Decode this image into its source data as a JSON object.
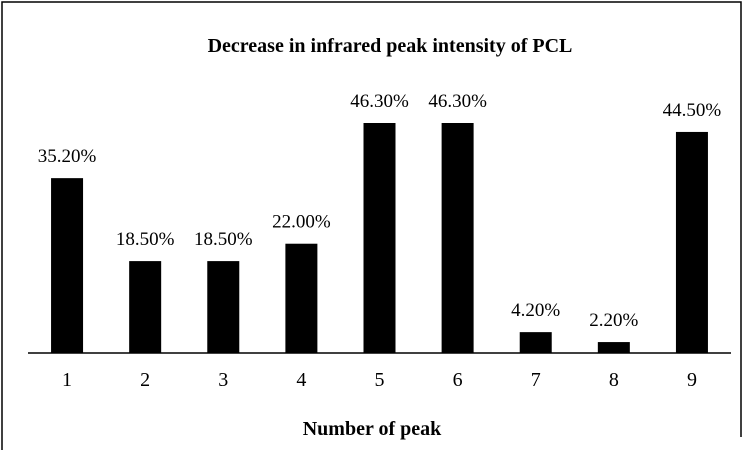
{
  "chart_data": {
    "type": "bar",
    "title": "Decrease in infrared peak intensity of PCL",
    "x_label": "Number of peak",
    "categories": [
      "1",
      "2",
      "3",
      "4",
      "5",
      "6",
      "7",
      "8",
      "9"
    ],
    "values": [
      35.2,
      18.5,
      18.5,
      22.0,
      46.3,
      46.3,
      4.2,
      2.2,
      44.5
    ],
    "value_labels": [
      "35.20%",
      "18.50%",
      "18.50%",
      "22.00%",
      "46.30%",
      "46.30%",
      "4.20%",
      "2.20%",
      "44.50%"
    ],
    "color": "#000000"
  }
}
